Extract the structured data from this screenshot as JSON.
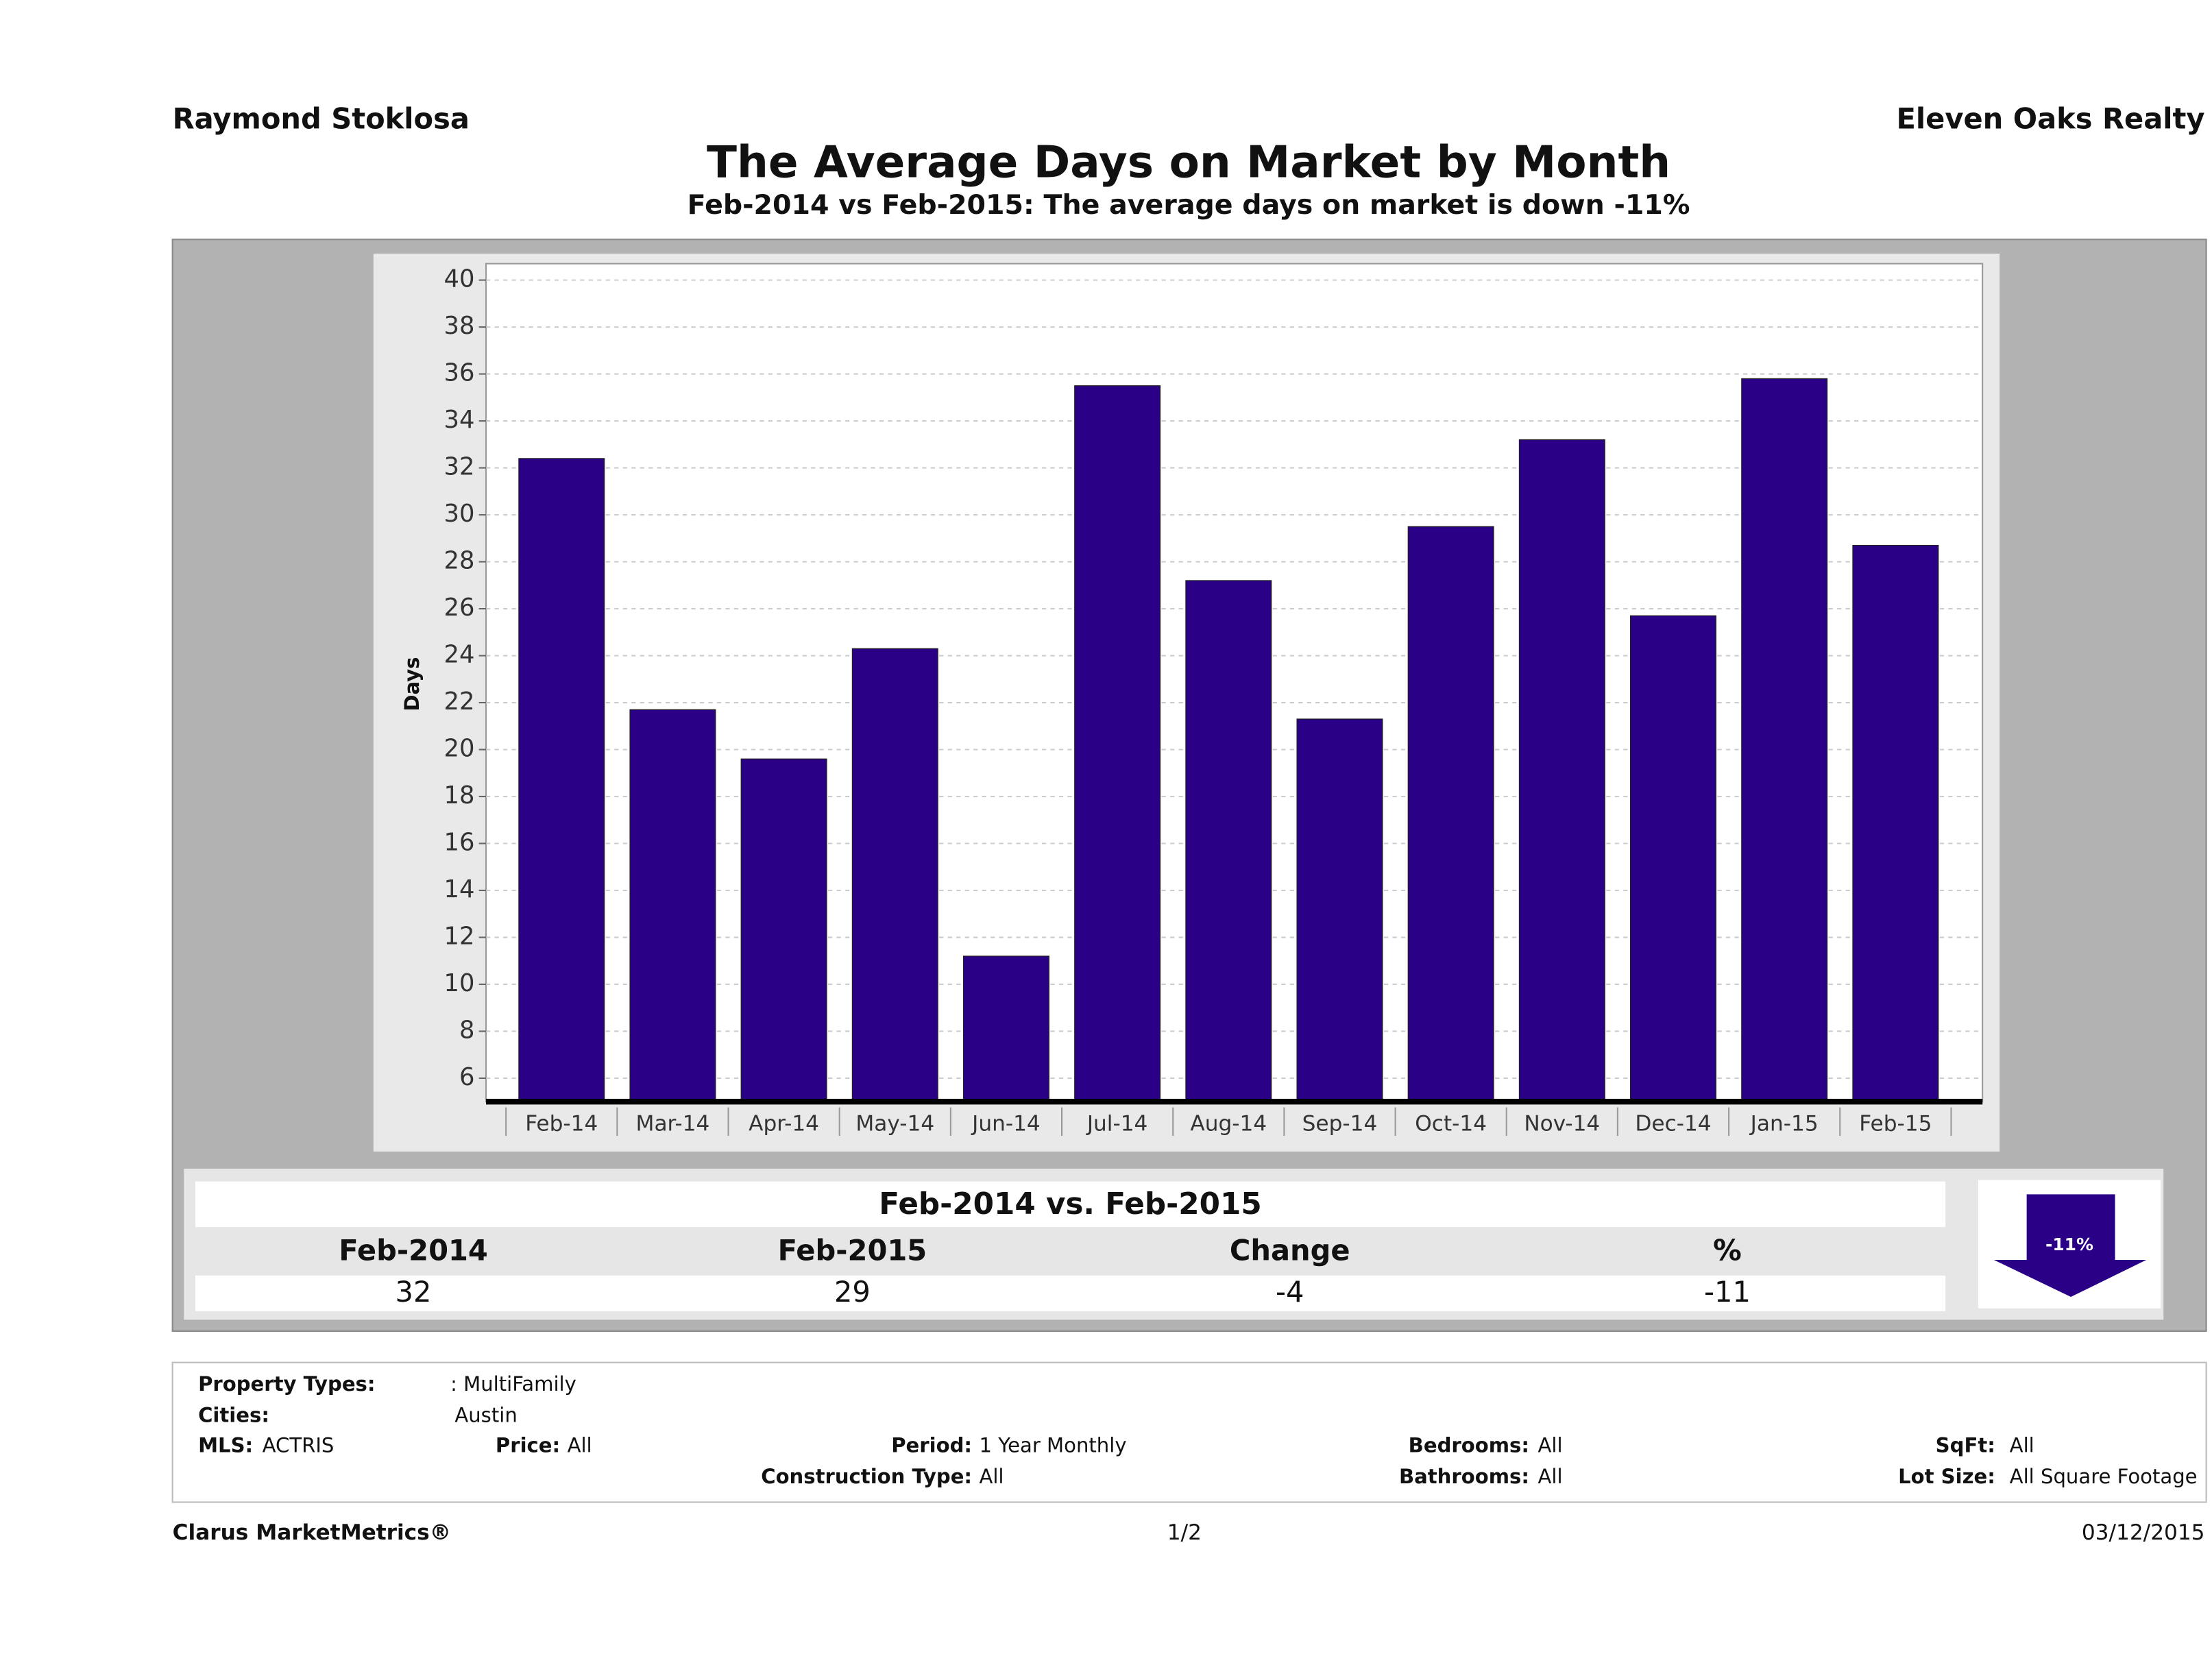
{
  "header": {
    "agent": "Raymond Stoklosa",
    "company": "Eleven Oaks Realty"
  },
  "chart_data": {
    "type": "bar",
    "title": "The Average Days on Market by Month",
    "subtitle": "Feb-2014 vs Feb-2015: The average days on market is down -11%",
    "y_label": "Days",
    "categories": [
      "Feb-14",
      "Mar-14",
      "Apr-14",
      "May-14",
      "Jun-14",
      "Jul-14",
      "Aug-14",
      "Sep-14",
      "Oct-14",
      "Nov-14",
      "Dec-14",
      "Jan-15",
      "Feb-15"
    ],
    "values": [
      32.4,
      21.7,
      19.6,
      24.3,
      11.2,
      35.5,
      27.2,
      21.3,
      29.5,
      33.2,
      25.7,
      35.8,
      28.7
    ],
    "color": "#2a0086",
    "ylim": [
      5,
      40.7
    ],
    "yticks": [
      6,
      8,
      10,
      12,
      14,
      16,
      18,
      20,
      22,
      24,
      26,
      28,
      30,
      32,
      34,
      36,
      38,
      40
    ],
    "grid": true
  },
  "summary": {
    "title": "Feb-2014 vs. Feb-2015",
    "columns": [
      "Feb-2014",
      "Feb-2015",
      "Change",
      "%"
    ],
    "values": [
      32,
      29,
      -4,
      -11
    ],
    "badge": "-11%"
  },
  "filters": [
    {
      "label": "Property Types:",
      "value": ": MultiFamily"
    },
    {
      "label": "Cities:",
      "value": "Austin"
    },
    {
      "label": "MLS:",
      "value": "ACTRIS"
    },
    {
      "label": "Price:",
      "value": "All"
    },
    {
      "label": "Period:",
      "value": "1 Year Monthly"
    },
    {
      "label": "Construction Type:",
      "value": "All"
    },
    {
      "label": "Bedrooms:",
      "value": "All"
    },
    {
      "label": "Bathrooms:",
      "value": "All"
    },
    {
      "label": "SqFt:",
      "value": "All"
    },
    {
      "label": "Lot Size:",
      "value": "All Square Footage"
    }
  ],
  "footer": {
    "brand": "Clarus MarketMetrics®",
    "page": "1/2",
    "date": "03/12/2015"
  }
}
